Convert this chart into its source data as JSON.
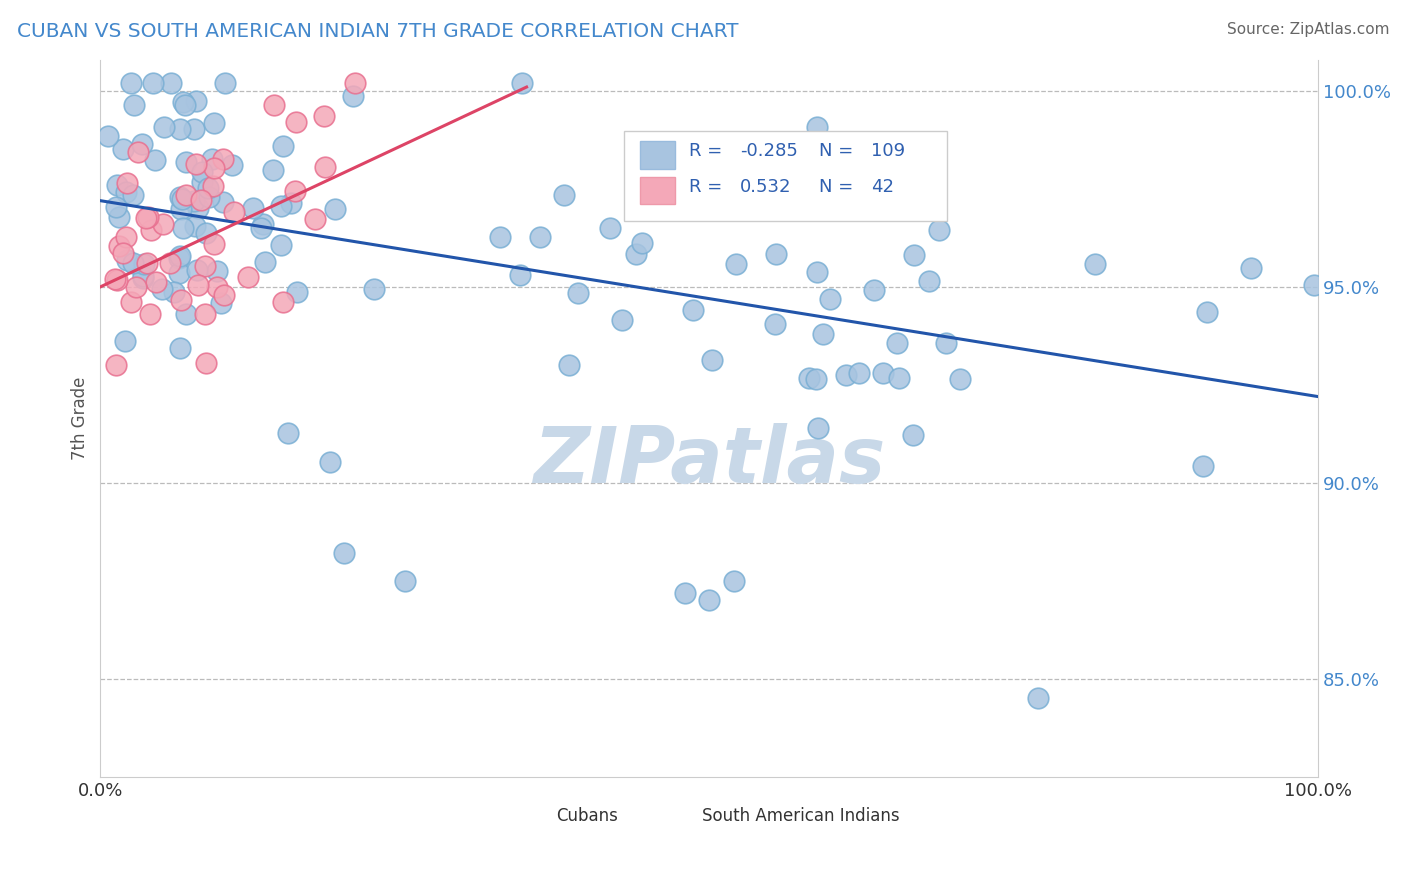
{
  "title": "CUBAN VS SOUTH AMERICAN INDIAN 7TH GRADE CORRELATION CHART",
  "source": "Source: ZipAtlas.com",
  "ylabel": "7th Grade",
  "xlim": [
    0,
    1
  ],
  "ylim": [
    0.825,
    1.008
  ],
  "yticks": [
    0.85,
    0.9,
    0.95,
    1.0
  ],
  "ytick_labels": [
    "85.0%",
    "90.0%",
    "95.0%",
    "100.0%"
  ],
  "blue_R": -0.285,
  "blue_N": 109,
  "pink_R": 0.532,
  "pink_N": 42,
  "blue_color": "#a8c4e0",
  "blue_edge": "#7aafd4",
  "pink_color": "#f4a8b8",
  "pink_edge": "#e87090",
  "blue_line_color": "#2255aa",
  "pink_line_color": "#dd4466",
  "legend_color": "#3060b0",
  "watermark_color": "#c8d8e8",
  "background_color": "#ffffff",
  "blue_trend_x0": 0.0,
  "blue_trend_y0": 0.972,
  "blue_trend_x1": 1.0,
  "blue_trend_y1": 0.922,
  "pink_trend_x0": 0.0,
  "pink_trend_y0": 0.95,
  "pink_trend_x1": 0.35,
  "pink_trend_y1": 1.001
}
